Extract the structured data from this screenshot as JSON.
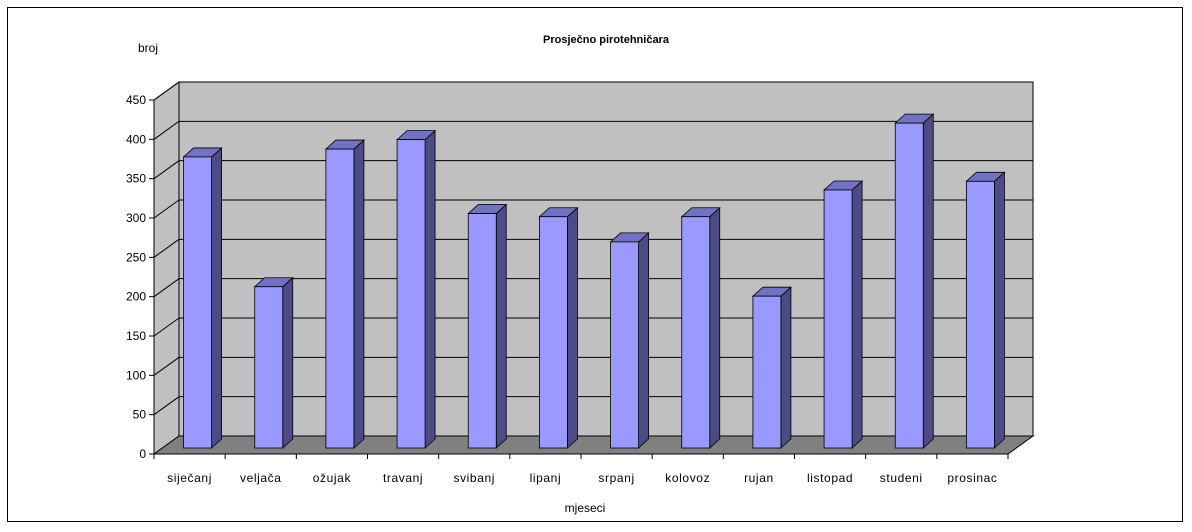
{
  "chart_data": {
    "type": "bar",
    "title": "Prosječno pirotehničara",
    "ylabel": "broj",
    "xlabel": "mjeseci",
    "ylim": [
      0,
      450
    ],
    "yticks": [
      0,
      50,
      100,
      150,
      200,
      250,
      300,
      350,
      400,
      450
    ],
    "grid": true,
    "style": "3d-column",
    "colors": {
      "bar_front": "#9999ff",
      "bar_side": "#4b4b85",
      "bar_top": "#7272c4",
      "wall": "#c0c0c0",
      "floor": "#808080"
    },
    "categories": [
      "siječanj",
      "veljača",
      "ožujak",
      "travanj",
      "svibanj",
      "lipanj",
      "srpanj",
      "kolovoz",
      "rujan",
      "listopad",
      "studeni",
      "prosinac"
    ],
    "values": [
      370,
      205,
      380,
      392,
      298,
      294,
      262,
      294,
      193,
      328,
      413,
      339
    ]
  }
}
